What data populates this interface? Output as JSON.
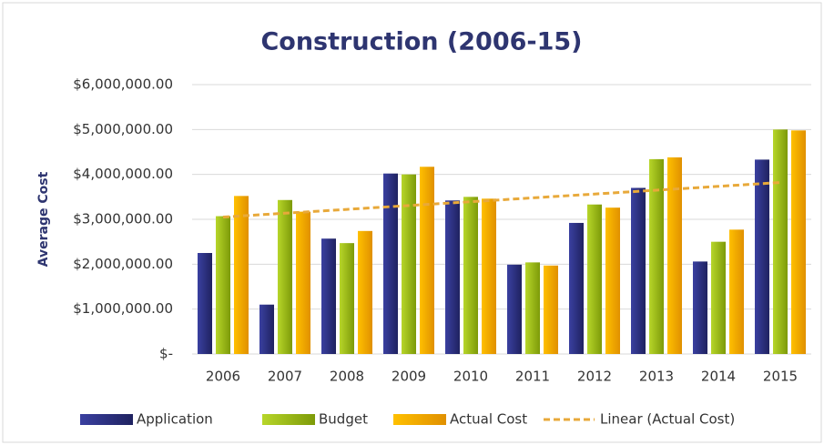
{
  "chart_data": {
    "type": "bar",
    "title": "Construction (2006-15)",
    "y_label": "Average Cost",
    "categories": [
      "2006",
      "2007",
      "2008",
      "2009",
      "2010",
      "2011",
      "2012",
      "2013",
      "2014",
      "2015"
    ],
    "series": [
      {
        "name": "Application",
        "color": "#2b3080",
        "values": [
          2250000,
          1100000,
          2570000,
          4020000,
          3420000,
          1990000,
          2920000,
          3700000,
          2060000,
          4330000
        ]
      },
      {
        "name": "Budget",
        "color": "#9bbb10",
        "values": [
          3070000,
          3430000,
          2470000,
          4000000,
          3500000,
          2040000,
          3330000,
          4340000,
          2500000,
          5000000
        ]
      },
      {
        "name": "Actual Cost",
        "color": "#f5a300",
        "values": [
          3520000,
          3170000,
          2740000,
          4170000,
          3460000,
          1970000,
          3260000,
          4380000,
          2770000,
          4980000
        ]
      },
      {
        "name": "Linear (Actual Cost)",
        "color": "#e8a93a",
        "type": "line",
        "dashed": true,
        "values": [
          3050000,
          3136000,
          3221000,
          3307000,
          3392000,
          3478000,
          3563000,
          3649000,
          3734000,
          3820000
        ]
      }
    ],
    "ylim": [
      0,
      6000000
    ],
    "yticks": [
      {
        "value": 0,
        "label": "$-"
      },
      {
        "value": 1000000,
        "label": "$1,000,000.00"
      },
      {
        "value": 2000000,
        "label": "$2,000,000.00"
      },
      {
        "value": 3000000,
        "label": "$3,000,000.00"
      },
      {
        "value": 4000000,
        "label": "$4,000,000.00"
      },
      {
        "value": 5000000,
        "label": "$5,000,000.00"
      },
      {
        "value": 6000000,
        "label": "$6,000,000.00"
      }
    ],
    "grid": true,
    "legend": "bottom"
  }
}
